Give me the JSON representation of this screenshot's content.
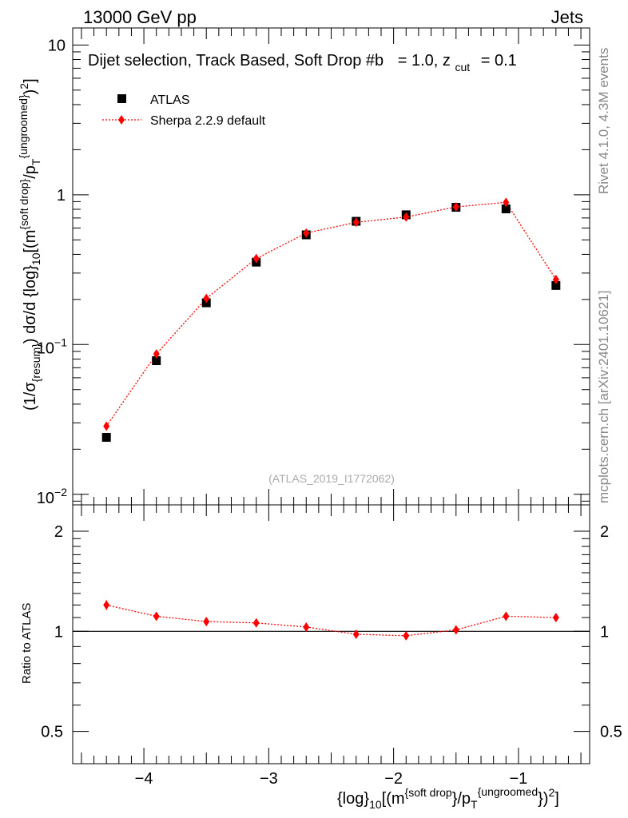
{
  "header": {
    "left": "13000 GeV pp",
    "right": "Jets"
  },
  "side_labels": {
    "rivet": "Rivet 4.1.0,  4.3M events",
    "mcplots": "mcplots.cern.ch [arXiv:2401.10621]"
  },
  "chart_data": [
    {
      "type": "scatter",
      "panel": "main",
      "title": "Dijet selection, Track Based, Soft Drop #b",
      "title_suffix_beta": "= 1.0, z",
      "title_suffix_cut_sub": "cut",
      "title_suffix_end": "= 0.1",
      "ylabel": "(1/σ_{resum}) dσ/d {log}_{10}[(m^{soft drop}/p_T^{ungroomed})^2]",
      "ylabel_main": "(1/σ",
      "ylabel_sub1": "{resum}",
      "ylabel_mid": ") dσ/d {log}",
      "ylabel_sub2": "10",
      "ylabel_mid2": "[(m",
      "ylabel_sup1": "{soft drop}",
      "ylabel_mid3": "/p",
      "ylabel_sub3": "T",
      "ylabel_sup2": "{ungroomed}",
      "ylabel_end": ")",
      "ylabel_sup3": "2",
      "ylabel_close": "]",
      "yscale": "log",
      "ylim": [
        0.0085,
        13
      ],
      "xlim": [
        -4.57,
        -0.43
      ],
      "y_ticks": [
        {
          "value": 10,
          "label": "10"
        },
        {
          "value": 1,
          "label": "1"
        },
        {
          "value": 0.1,
          "label": "10",
          "exp": "−1"
        },
        {
          "value": 0.01,
          "label": "10",
          "exp": "−2"
        }
      ],
      "x": [
        -4.3,
        -3.9,
        -3.5,
        -3.1,
        -2.7,
        -2.3,
        -1.9,
        -1.5,
        -1.1,
        -0.7
      ],
      "series": [
        {
          "name": "ATLAS",
          "marker": "square",
          "color": "#000000",
          "values": [
            0.024,
            0.078,
            0.19,
            0.355,
            0.54,
            0.665,
            0.735,
            0.825,
            0.805,
            0.248
          ]
        },
        {
          "name": "Sherpa 2.2.9 default",
          "marker": "diamond",
          "line": "dotted",
          "color": "#ff0000",
          "values": [
            0.0285,
            0.0865,
            0.203,
            0.375,
            0.555,
            0.655,
            0.71,
            0.83,
            0.89,
            0.272
          ]
        }
      ],
      "legend_position": "top-left",
      "watermark": "(ATLAS_2019_I1772062)"
    },
    {
      "type": "scatter",
      "panel": "ratio",
      "ylabel": "Ratio to ATLAS",
      "xlabel": "{log}_{10}[(m^{soft drop}/p_T^{ungroomed})^2]",
      "xlabel_main": "{log}",
      "xlabel_sub1": "10",
      "xlabel_mid": "[(m",
      "xlabel_sup1": "{soft drop",
      "xlabel_mid2": "}/p",
      "xlabel_sub2": "T",
      "xlabel_sup2": "{ungroomed",
      "xlabel_mid3": "})",
      "xlabel_sup3": "2",
      "xlabel_end": "]",
      "yscale": "log",
      "ylim": [
        0.4,
        2.4
      ],
      "reference_line": 1,
      "y_ticks": [
        {
          "value": 2,
          "label": "2"
        },
        {
          "value": 1,
          "label": "1"
        },
        {
          "value": 0.5,
          "label": "0.5"
        }
      ],
      "x_ticks": [
        {
          "value": -4,
          "label": "−4"
        },
        {
          "value": -3,
          "label": "−3"
        },
        {
          "value": -2,
          "label": "−2"
        },
        {
          "value": -1,
          "label": "−1"
        }
      ],
      "x": [
        -4.3,
        -3.9,
        -3.5,
        -3.1,
        -2.7,
        -2.3,
        -1.9,
        -1.5,
        -1.1,
        -0.7
      ],
      "series": [
        {
          "name": "Sherpa 2.2.9 default",
          "marker": "diamond",
          "line": "dotted",
          "color": "#ff0000",
          "values": [
            1.2,
            1.11,
            1.07,
            1.06,
            1.03,
            0.98,
            0.97,
            1.01,
            1.11,
            1.1
          ],
          "errors": [
            0.04,
            0.015,
            0.01,
            0.01,
            0.01,
            0.01,
            0.01,
            0.01,
            0.015,
            0.015
          ]
        }
      ]
    }
  ]
}
